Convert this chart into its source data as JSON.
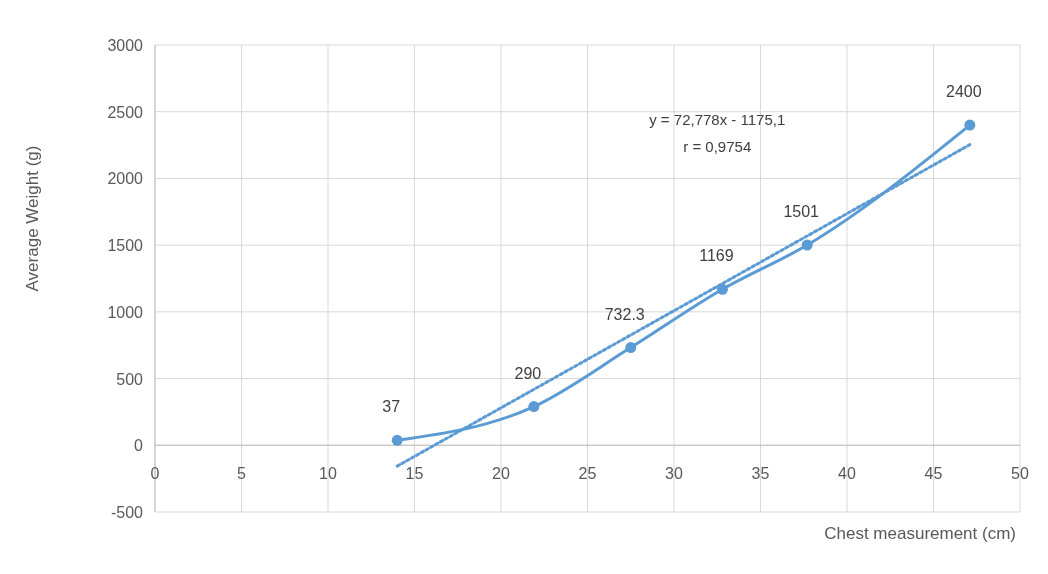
{
  "chart_data": {
    "type": "line",
    "xlabel": "Chest measurement (cm)",
    "ylabel": "Average Weight (g)",
    "xlim": [
      0,
      50
    ],
    "xticks": [
      0,
      5,
      10,
      15,
      20,
      25,
      30,
      35,
      40,
      45,
      50
    ],
    "ylim": [
      -500,
      3000
    ],
    "yticks": [
      -500,
      0,
      500,
      1000,
      1500,
      2000,
      2500,
      3000
    ],
    "grid": true,
    "annotations": [
      "y = 72,778x - 1175,1",
      "r = 0,9754"
    ],
    "series": [
      {
        "color": "#5b9bd5",
        "marker": "circle",
        "line_style": "solid",
        "x": [
          14,
          21.9,
          27.5,
          32.8,
          37.7,
          47.1
        ],
        "values": [
          37,
          290,
          732.3,
          1169,
          1501,
          2400
        ],
        "value_labels": [
          "37",
          "290",
          "732.3",
          "1169",
          "1501",
          "2400"
        ]
      },
      {
        "type": "line",
        "color": "#5b9bd5",
        "marker": "none",
        "line_style": "dotted",
        "x": [
          14,
          47.1
        ],
        "values": [
          -156,
          2253
        ]
      }
    ]
  }
}
